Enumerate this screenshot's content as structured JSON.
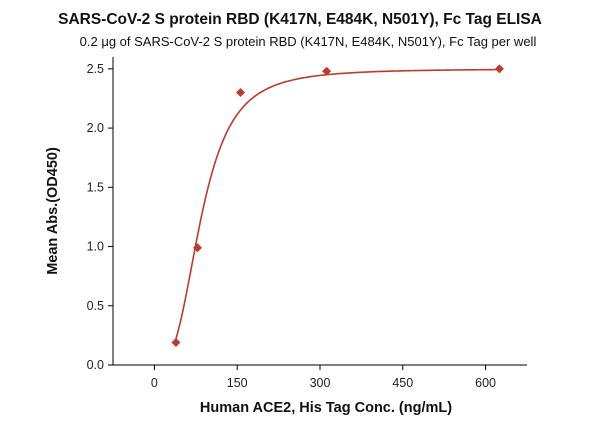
{
  "chart_data": {
    "type": "scatter",
    "title": "SARS-CoV-2 S protein RBD (K417N, E484K, N501Y), Fc Tag ELISA",
    "subtitle": "0.2 μg of SARS-CoV-2 S protein RBD (K417N, E484K, N501Y), Fc Tag per well",
    "xlabel": "Human ACE2, His Tag Conc. (ng/mL)",
    "ylabel": "Mean Abs.(OD450)",
    "xlim": [
      -75,
      675
    ],
    "ylim": [
      0,
      2.6
    ],
    "x_ticks": [
      0,
      150,
      300,
      450,
      600
    ],
    "x_tick_labels": [
      "0",
      "150",
      "300",
      "450",
      "600"
    ],
    "y_ticks": [
      0.0,
      0.5,
      1.0,
      1.5,
      2.0,
      2.5
    ],
    "y_tick_labels": [
      "0.0",
      "0.5",
      "1.0",
      "1.5",
      "2.0",
      "2.5"
    ],
    "grid": false,
    "series": [
      {
        "x": [
          39,
          78,
          156,
          312,
          625
        ],
        "y": [
          0.19,
          0.99,
          2.3,
          2.48,
          2.5
        ],
        "marker": "diamond",
        "color": "#c0392b"
      }
    ],
    "fit_curve": {
      "model": "four-parameter logistic",
      "bottom": 0.0,
      "top": 2.5,
      "ec50": 85,
      "hill": 3.0,
      "x_range": [
        39,
        625
      ],
      "color": "#c0392b"
    }
  }
}
